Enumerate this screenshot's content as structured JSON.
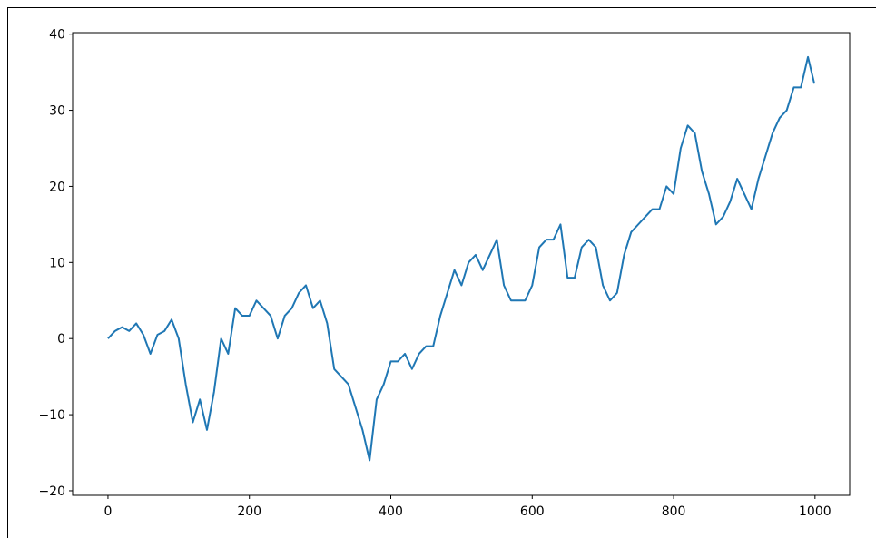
{
  "chart_data": {
    "type": "line",
    "x": [
      0,
      10,
      20,
      30,
      40,
      50,
      60,
      70,
      80,
      90,
      100,
      110,
      120,
      130,
      140,
      150,
      160,
      170,
      180,
      190,
      200,
      210,
      220,
      230,
      240,
      250,
      260,
      270,
      280,
      290,
      300,
      310,
      320,
      330,
      340,
      350,
      360,
      370,
      380,
      390,
      400,
      410,
      420,
      430,
      440,
      450,
      460,
      470,
      480,
      490,
      500,
      510,
      520,
      530,
      540,
      550,
      560,
      570,
      580,
      590,
      600,
      610,
      620,
      630,
      640,
      650,
      660,
      670,
      680,
      690,
      700,
      710,
      720,
      730,
      740,
      750,
      760,
      770,
      780,
      790,
      800,
      810,
      820,
      830,
      840,
      850,
      860,
      870,
      880,
      890,
      900,
      910,
      920,
      930,
      940,
      950,
      960,
      970,
      980,
      990,
      999
    ],
    "series": [
      {
        "color": "#1f77b4",
        "values": [
          0,
          1,
          1.5,
          1,
          2,
          0.5,
          -2,
          0.5,
          1,
          2.5,
          0,
          -6,
          -11,
          -8,
          -12,
          -7,
          0,
          -2,
          4,
          3,
          3,
          5,
          4,
          3,
          0,
          3,
          4,
          6,
          7,
          4,
          5,
          2,
          -4,
          -5,
          -6,
          -9,
          -12,
          -16,
          -8,
          -6,
          -3,
          -3,
          -2,
          -4,
          -2,
          -1,
          -1,
          3,
          6,
          9,
          7,
          10,
          11,
          9,
          11,
          13,
          7,
          5,
          5,
          5,
          7,
          12,
          13,
          13,
          15,
          8,
          8,
          12,
          13,
          12,
          7,
          5,
          6,
          11,
          14,
          15,
          16,
          17,
          17,
          20,
          19,
          25,
          28,
          27,
          22,
          19,
          15,
          16,
          18,
          21,
          19,
          17,
          21,
          24,
          27,
          29,
          30,
          33,
          33,
          37,
          33.5
        ]
      }
    ],
    "xlim": [
      -50,
      1049
    ],
    "ylim": [
      -20.6,
      40.2
    ],
    "xticks": [
      0,
      200,
      400,
      600,
      800,
      1000
    ],
    "yticks": [
      {
        "value": -20,
        "label": "−20"
      },
      {
        "value": -10,
        "label": "−10"
      },
      0,
      10,
      20,
      30,
      40
    ]
  }
}
